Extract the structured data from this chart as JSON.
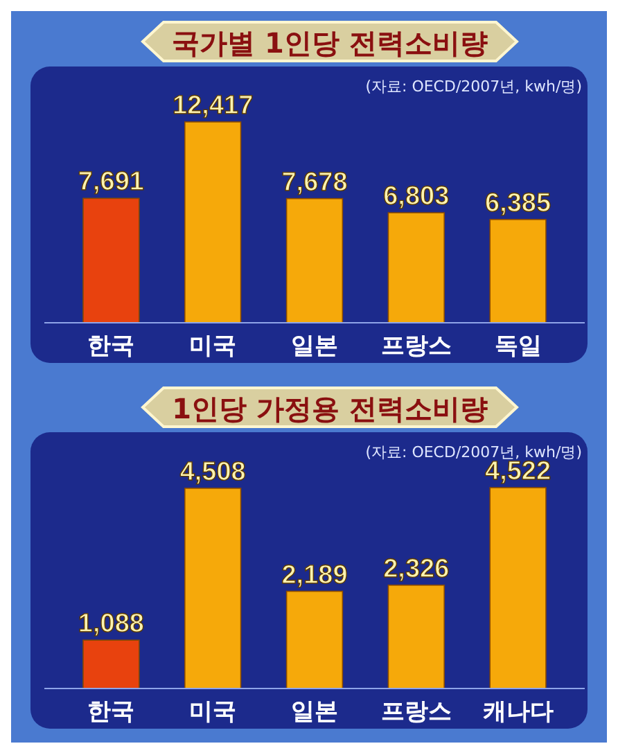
{
  "chart_data": [
    {
      "type": "bar",
      "title": "국가별 1인당 전력소비량",
      "annotations": [
        "(자료: OECD/2007년, kwh/명)"
      ],
      "categories": [
        "한국",
        "미국",
        "일본",
        "프랑스",
        "독일"
      ],
      "values": [
        7691,
        12417,
        7678,
        6803,
        6385
      ],
      "colors": [
        "#e8420e",
        "#f6a90a",
        "#f6a90a",
        "#f6a90a",
        "#f6a90a"
      ],
      "value_labels": [
        "7,691",
        "12,417",
        "7,678",
        "6,803",
        "6,385"
      ]
    },
    {
      "type": "bar",
      "title": "1인당 가정용 전력소비량",
      "annotations": [
        "(자료: OECD/2007년, kwh/명)"
      ],
      "categories": [
        "한국",
        "미국",
        "일본",
        "프랑스",
        "캐나다"
      ],
      "values": [
        1088,
        4508,
        2189,
        2326,
        4522
      ],
      "colors": [
        "#e8420e",
        "#f6a90a",
        "#f6a90a",
        "#f6a90a",
        "#f6a90a"
      ],
      "value_labels": [
        "1,088",
        "4,508",
        "2,189",
        "2,326",
        "4,522"
      ]
    }
  ]
}
